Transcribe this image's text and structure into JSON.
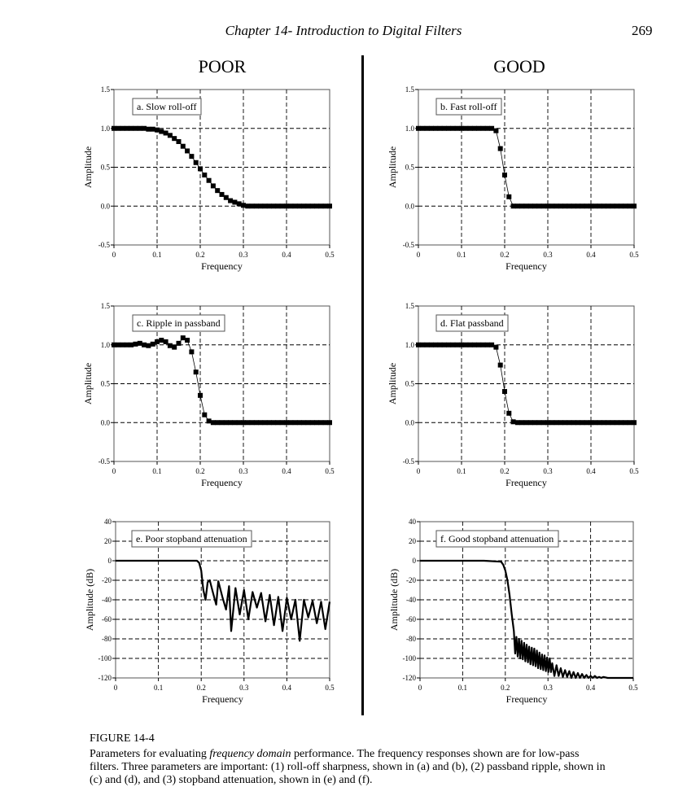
{
  "page": {
    "header": "Chapter 14- Introduction to Digital Filters",
    "page_number": "269"
  },
  "columns": {
    "left": "POOR",
    "right": "GOOD"
  },
  "figure": {
    "label": "FIGURE 14-4",
    "caption_pre": "Parameters for evaluating ",
    "caption_em": "frequency domain",
    "caption_post": " performance.  The frequency responses shown are for low-pass filters.  Three parameters are important: (1) roll-off sharpness, shown in (a) and (b), (2) passband ripple, shown in (c) and (d), and (3) stopband attenuation, shown in (e) and (f)."
  },
  "colors": {
    "ink": "#000000",
    "background": "#ffffff"
  },
  "chart_data": [
    {
      "id": "a",
      "type": "scatter",
      "annotation": "a.  Slow roll-off",
      "xlabel": "Frequency",
      "ylabel": "Amplitude",
      "xlim": [
        0,
        0.5
      ],
      "ylim": [
        -0.5,
        1.5
      ],
      "xticks": [
        "0",
        "0.1",
        "0.2",
        "0.3",
        "0.4",
        "0.5"
      ],
      "yticks": [
        "1.5",
        "1.0",
        "0.5",
        "0.0",
        "-0.5"
      ],
      "grid": true,
      "series": [
        {
          "x": [
            0,
            0.01,
            0.02,
            0.03,
            0.04,
            0.05,
            0.06,
            0.07,
            0.08,
            0.09,
            0.1,
            0.11,
            0.12,
            0.13,
            0.14,
            0.15,
            0.16,
            0.17,
            0.18,
            0.19,
            0.2,
            0.21,
            0.22,
            0.23,
            0.24,
            0.25,
            0.26,
            0.27,
            0.28,
            0.29,
            0.3,
            0.31,
            0.32,
            0.33,
            0.34,
            0.35,
            0.36,
            0.37,
            0.38,
            0.39,
            0.4,
            0.41,
            0.42,
            0.43,
            0.44,
            0.45,
            0.46,
            0.47,
            0.48,
            0.49,
            0.5
          ],
          "y": [
            1,
            1,
            1,
            1,
            1,
            1,
            1,
            1,
            0.99,
            0.99,
            0.98,
            0.96,
            0.94,
            0.91,
            0.87,
            0.83,
            0.77,
            0.71,
            0.64,
            0.56,
            0.48,
            0.4,
            0.33,
            0.26,
            0.2,
            0.15,
            0.11,
            0.07,
            0.05,
            0.03,
            0.01,
            0,
            0,
            0,
            0,
            0,
            0,
            0,
            0,
            0,
            0,
            0,
            0,
            0,
            0,
            0,
            0,
            0,
            0,
            0,
            0
          ]
        }
      ]
    },
    {
      "id": "b",
      "type": "scatter",
      "annotation": "b.  Fast roll-off",
      "xlabel": "Frequency",
      "ylabel": "Amplitude",
      "xlim": [
        0,
        0.5
      ],
      "ylim": [
        -0.5,
        1.5
      ],
      "xticks": [
        "0",
        "0.1",
        "0.2",
        "0.3",
        "0.4",
        "0.5"
      ],
      "yticks": [
        "1.5",
        "1.0",
        "0.5",
        "0.0",
        "-0.5"
      ],
      "grid": true,
      "series": [
        {
          "x": [
            0,
            0.01,
            0.02,
            0.03,
            0.04,
            0.05,
            0.06,
            0.07,
            0.08,
            0.09,
            0.1,
            0.11,
            0.12,
            0.13,
            0.14,
            0.15,
            0.16,
            0.17,
            0.18,
            0.19,
            0.2,
            0.21,
            0.22,
            0.23,
            0.24,
            0.25,
            0.26,
            0.27,
            0.28,
            0.29,
            0.3,
            0.31,
            0.32,
            0.33,
            0.34,
            0.35,
            0.36,
            0.37,
            0.38,
            0.39,
            0.4,
            0.41,
            0.42,
            0.43,
            0.44,
            0.45,
            0.46,
            0.47,
            0.48,
            0.49,
            0.5
          ],
          "y": [
            1,
            1,
            1,
            1,
            1,
            1,
            1,
            1,
            1,
            1,
            1,
            1,
            1,
            1,
            1,
            1,
            1,
            1,
            0.97,
            0.74,
            0.4,
            0.12,
            0,
            0,
            0,
            0,
            0,
            0,
            0,
            0,
            0,
            0,
            0,
            0,
            0,
            0,
            0,
            0,
            0,
            0,
            0,
            0,
            0,
            0,
            0,
            0,
            0,
            0,
            0,
            0,
            0
          ]
        }
      ]
    },
    {
      "id": "c",
      "type": "scatter",
      "annotation": "c.  Ripple in passband",
      "xlabel": "Frequency",
      "ylabel": "Amplitude",
      "xlim": [
        0,
        0.5
      ],
      "ylim": [
        -0.5,
        1.5
      ],
      "xticks": [
        "0",
        "0.1",
        "0.2",
        "0.3",
        "0.4",
        "0.5"
      ],
      "yticks": [
        "1.5",
        "1.0",
        "0.5",
        "0.0",
        "-0.5"
      ],
      "grid": true,
      "series": [
        {
          "x": [
            0,
            0.01,
            0.02,
            0.03,
            0.04,
            0.05,
            0.06,
            0.07,
            0.08,
            0.09,
            0.1,
            0.11,
            0.12,
            0.13,
            0.14,
            0.15,
            0.16,
            0.17,
            0.18,
            0.19,
            0.2,
            0.21,
            0.22,
            0.23,
            0.24,
            0.25,
            0.26,
            0.27,
            0.28,
            0.29,
            0.3,
            0.31,
            0.32,
            0.33,
            0.34,
            0.35,
            0.36,
            0.37,
            0.38,
            0.39,
            0.4,
            0.41,
            0.42,
            0.43,
            0.44,
            0.45,
            0.46,
            0.47,
            0.48,
            0.49,
            0.5
          ],
          "y": [
            1,
            1,
            1,
            1,
            1,
            1.01,
            1.02,
            1,
            0.99,
            1.01,
            1.04,
            1.06,
            1.04,
            0.99,
            0.97,
            1.02,
            1.09,
            1.06,
            0.91,
            0.65,
            0.35,
            0.1,
            0.02,
            0,
            0,
            0,
            0,
            0,
            0,
            0,
            0,
            0,
            0,
            0,
            0,
            0,
            0,
            0,
            0,
            0,
            0,
            0,
            0,
            0,
            0,
            0,
            0,
            0,
            0,
            0,
            0
          ]
        }
      ]
    },
    {
      "id": "d",
      "type": "scatter",
      "annotation": "d.  Flat passband",
      "xlabel": "Frequency",
      "ylabel": "Amplitude",
      "xlim": [
        0,
        0.5
      ],
      "ylim": [
        -0.5,
        1.5
      ],
      "xticks": [
        "0",
        "0.1",
        "0.2",
        "0.3",
        "0.4",
        "0.5"
      ],
      "yticks": [
        "1.5",
        "1.0",
        "0.5",
        "0.0",
        "-0.5"
      ],
      "grid": true,
      "series": [
        {
          "x": [
            0,
            0.01,
            0.02,
            0.03,
            0.04,
            0.05,
            0.06,
            0.07,
            0.08,
            0.09,
            0.1,
            0.11,
            0.12,
            0.13,
            0.14,
            0.15,
            0.16,
            0.17,
            0.18,
            0.19,
            0.2,
            0.21,
            0.22,
            0.23,
            0.24,
            0.25,
            0.26,
            0.27,
            0.28,
            0.29,
            0.3,
            0.31,
            0.32,
            0.33,
            0.34,
            0.35,
            0.36,
            0.37,
            0.38,
            0.39,
            0.4,
            0.41,
            0.42,
            0.43,
            0.44,
            0.45,
            0.46,
            0.47,
            0.48,
            0.49,
            0.5
          ],
          "y": [
            1,
            1,
            1,
            1,
            1,
            1,
            1,
            1,
            1,
            1,
            1,
            1,
            1,
            1,
            1,
            1,
            1,
            1,
            0.97,
            0.74,
            0.4,
            0.12,
            0.01,
            0,
            0,
            0,
            0,
            0,
            0,
            0,
            0,
            0,
            0,
            0,
            0,
            0,
            0,
            0,
            0,
            0,
            0,
            0,
            0,
            0,
            0,
            0,
            0,
            0,
            0,
            0,
            0
          ]
        }
      ]
    },
    {
      "id": "e",
      "type": "line",
      "annotation": "e.  Poor stopband attenuation",
      "xlabel": "Frequency",
      "ylabel": "Amplitude (dB)",
      "xlim": [
        0,
        0.5
      ],
      "ylim": [
        -120,
        40
      ],
      "xticks": [
        "0",
        "0.1",
        "0.2",
        "0.3",
        "0.4",
        "0.5"
      ],
      "yticks": [
        "40",
        "20",
        "0",
        "-20",
        "-40",
        "-60",
        "-80",
        "-100",
        "-120"
      ],
      "grid": true,
      "series": [
        {
          "x": [
            0,
            0.05,
            0.1,
            0.15,
            0.19,
            0.195,
            0.2,
            0.205,
            0.21,
            0.215,
            0.22,
            0.227,
            0.235,
            0.24,
            0.25,
            0.258,
            0.265,
            0.27,
            0.28,
            0.29,
            0.3,
            0.31,
            0.32,
            0.33,
            0.34,
            0.35,
            0.36,
            0.37,
            0.38,
            0.39,
            0.4,
            0.41,
            0.42,
            0.43,
            0.44,
            0.45,
            0.46,
            0.47,
            0.48,
            0.49,
            0.5
          ],
          "y": [
            0,
            0,
            0,
            0,
            0,
            -2,
            -10,
            -30,
            -40,
            -22,
            -20,
            -32,
            -45,
            -21,
            -38,
            -50,
            -26,
            -72,
            -28,
            -55,
            -30,
            -60,
            -32,
            -48,
            -33,
            -62,
            -35,
            -66,
            -37,
            -72,
            -38,
            -60,
            -40,
            -82,
            -40,
            -58,
            -41,
            -64,
            -42,
            -70,
            -42
          ]
        }
      ]
    },
    {
      "id": "f",
      "type": "line",
      "annotation": "f.  Good stopband attenuation",
      "xlabel": "Frequency",
      "ylabel": "Amplitude (dB)",
      "xlim": [
        0,
        0.5
      ],
      "ylim": [
        -120,
        40
      ],
      "xticks": [
        "0",
        "0.1",
        "0.2",
        "0.3",
        "0.4",
        "0.5"
      ],
      "yticks": [
        "40",
        "20",
        "0",
        "-20",
        "-40",
        "-60",
        "-80",
        "-100",
        "-120"
      ],
      "grid": true,
      "series": [
        {
          "x": [
            0,
            0.05,
            0.1,
            0.15,
            0.19,
            0.195,
            0.2,
            0.205,
            0.21,
            0.215,
            0.22,
            0.223,
            0.226,
            0.229,
            0.232,
            0.235,
            0.238,
            0.241,
            0.244,
            0.247,
            0.25,
            0.253,
            0.256,
            0.259,
            0.262,
            0.265,
            0.268,
            0.271,
            0.274,
            0.277,
            0.28,
            0.283,
            0.286,
            0.289,
            0.292,
            0.295,
            0.298,
            0.301,
            0.304,
            0.307,
            0.31,
            0.315,
            0.32,
            0.325,
            0.33,
            0.335,
            0.34,
            0.345,
            0.35,
            0.355,
            0.36,
            0.365,
            0.37,
            0.375,
            0.38,
            0.385,
            0.39,
            0.395,
            0.4,
            0.405,
            0.41,
            0.415,
            0.42,
            0.425,
            0.43,
            0.44,
            0.45,
            0.46,
            0.47,
            0.48,
            0.49,
            0.5
          ],
          "y": [
            0,
            0,
            0,
            0,
            -1,
            -4,
            -10,
            -20,
            -35,
            -55,
            -72,
            -95,
            -78,
            -98,
            -80,
            -100,
            -82,
            -101,
            -84,
            -103,
            -86,
            -104,
            -88,
            -106,
            -89,
            -107,
            -90,
            -108,
            -92,
            -110,
            -94,
            -111,
            -96,
            -112,
            -97,
            -113,
            -99,
            -114,
            -100,
            -114,
            -105,
            -118,
            -107,
            -118,
            -110,
            -119,
            -112,
            -119,
            -113,
            -120,
            -114,
            -120,
            -115,
            -120,
            -116,
            -120,
            -117,
            -120,
            -118,
            -120,
            -118,
            -120,
            -119,
            -120,
            -119,
            -120,
            -120,
            -120,
            -120,
            -120,
            -120,
            -120
          ]
        }
      ]
    }
  ]
}
